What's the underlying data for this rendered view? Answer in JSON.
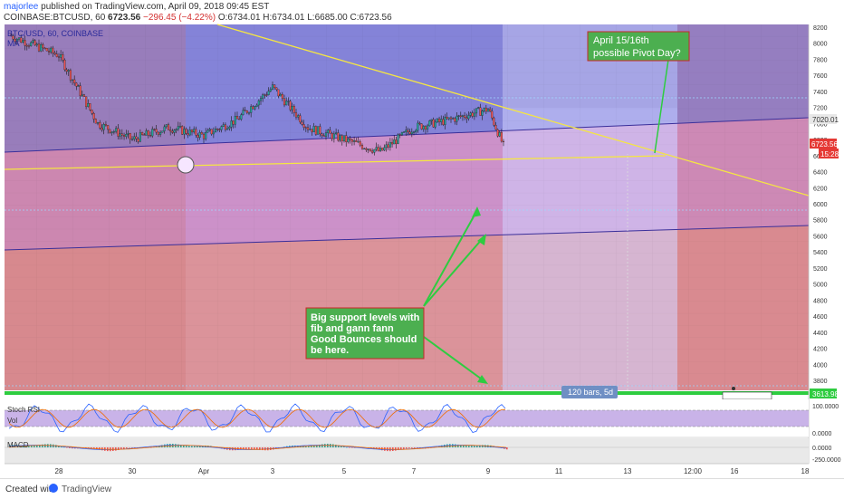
{
  "header": {
    "author": "majorlee",
    "published_text": "published on TradingView.com, April 09, 2018 09:45 EST",
    "symbol_line": "COINBASE:BTCUSD, 60",
    "last_price": "6723.56",
    "change": "−296.45 (−4.22%)",
    "ohlc": "O:6734.01 H:6734.01 L:6685.00 C:6723.56"
  },
  "legend": {
    "chart_symbol": "BTC/USD, 60, COINBASE",
    "ma_label": "MA"
  },
  "annotations": {
    "pivot_note": [
      "April 15/16th",
      "possible Pivot Day?"
    ],
    "support_note": [
      "Big support levels with",
      "fib and gann fann",
      "Good Bounces should",
      "be here."
    ],
    "range_label": "120 bars, 5d"
  },
  "price_tags": {
    "current": "6723.56",
    "countdown": "15:28",
    "level_7020": "7020.01",
    "level_3613": "3613.98"
  },
  "indicators": {
    "stoch_label": "Stoch RSI",
    "vol_label": "Vol",
    "macd_label": "MACD",
    "stoch_ticks": [
      "100.0000",
      "0.0000"
    ],
    "macd_ticks": [
      "0.0000",
      "-250.0000"
    ]
  },
  "footer": {
    "created_with": "Created with",
    "brand": "TradingView"
  },
  "colors": {
    "trendline": "#f5e642",
    "annotation_bg": "#4caf50",
    "support_line": "#2ecc40",
    "up_candle": "#26a69a",
    "down_candle": "#ef5350",
    "price_tag": "#e53935"
  },
  "chart_data": {
    "type": "candlestick",
    "symbol": "COINBASE:BTCUSD",
    "interval": "60",
    "x_tick_labels": [
      "28",
      "30",
      "Apr",
      "3",
      "5",
      "7",
      "9",
      "11",
      "13",
      "12:00",
      "16",
      "18"
    ],
    "y_tick_labels": [
      8200,
      8000,
      7800,
      7600,
      7400,
      7200,
      7000,
      6800,
      6600,
      6400,
      6200,
      6000,
      5800,
      5600,
      5400,
      5200,
      5000,
      4800,
      4600,
      4400,
      4200,
      4000,
      3800
    ],
    "ylim": [
      3600,
      8250
    ],
    "price_path": [
      {
        "x": "27",
        "close": 8100
      },
      {
        "x": "28",
        "close": 7850
      },
      {
        "x": "29",
        "close": 7000
      },
      {
        "x": "30",
        "close": 6800
      },
      {
        "x": "31",
        "close": 6950
      },
      {
        "x": "Apr",
        "close": 6850
      },
      {
        "x": "2",
        "close": 7050
      },
      {
        "x": "3",
        "close": 7450
      },
      {
        "x": "4",
        "close": 6950
      },
      {
        "x": "5",
        "close": 6800
      },
      {
        "x": "6",
        "close": 6650
      },
      {
        "x": "7",
        "close": 6950
      },
      {
        "x": "8",
        "close": 7050
      },
      {
        "x": "9",
        "close": 7180
      },
      {
        "x": "9 09:45",
        "close": 6723.56
      }
    ],
    "horizontal_levels": [
      7020.01,
      3613.98
    ],
    "range_projection_bars": 120
  }
}
